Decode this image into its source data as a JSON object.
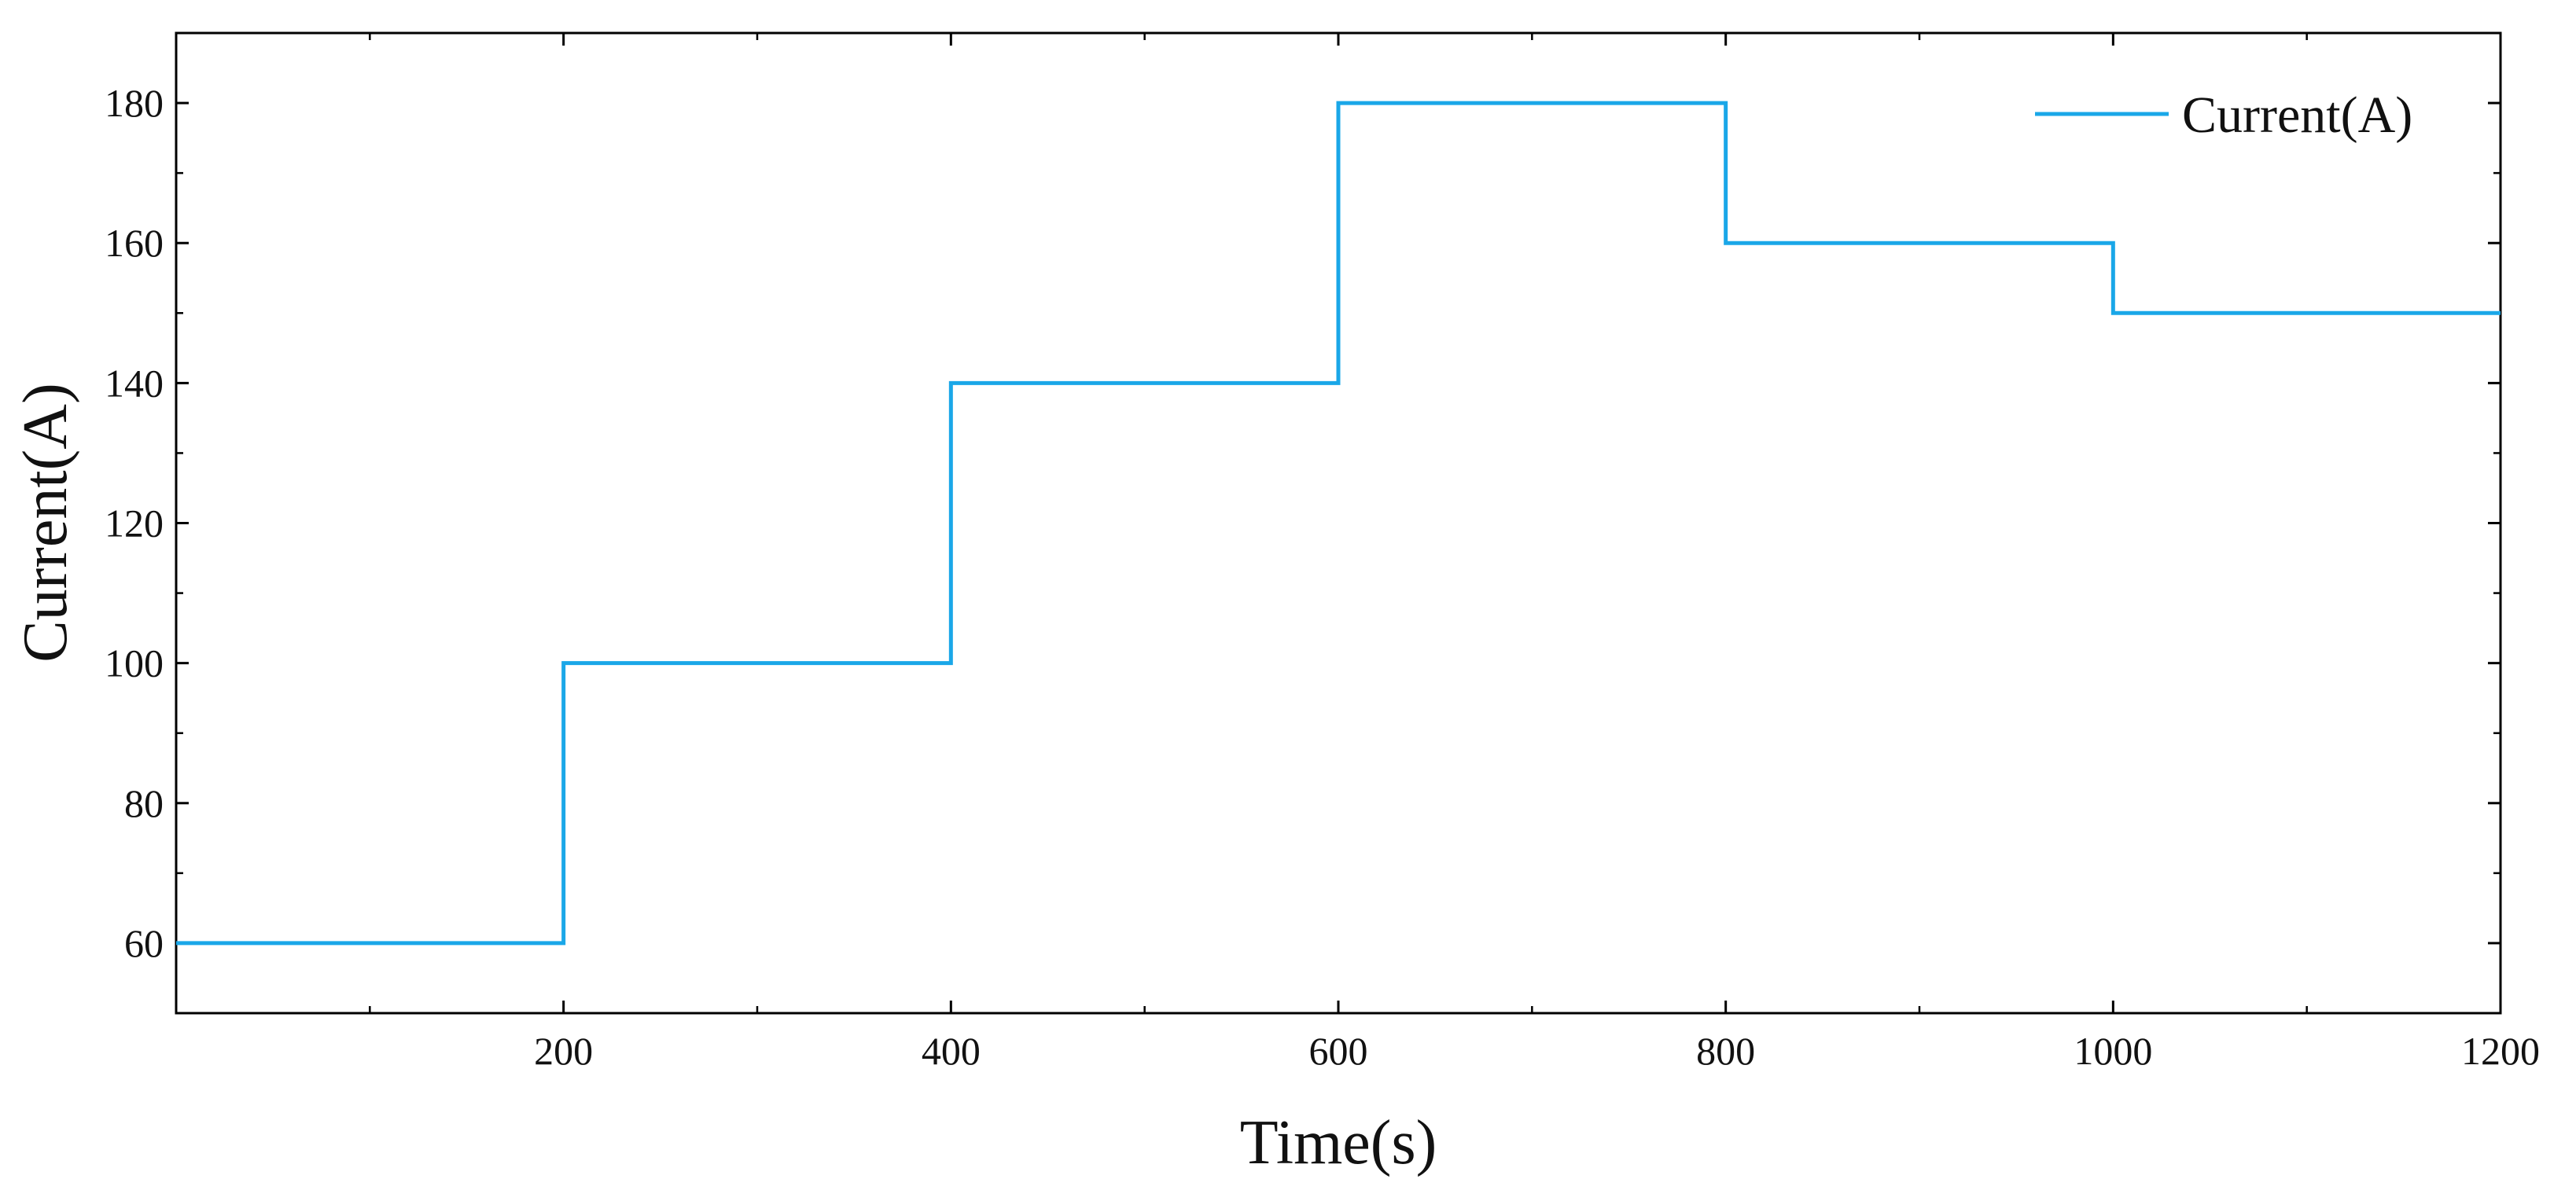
{
  "chart_data": {
    "type": "line",
    "xlabel": "Time(s)",
    "ylabel": "Current(A)",
    "xlim": [
      0,
      1200
    ],
    "ylim": [
      50,
      190
    ],
    "xticks": [
      200,
      400,
      600,
      800,
      1000,
      1200
    ],
    "yticks": [
      60,
      80,
      100,
      120,
      140,
      160,
      180
    ],
    "x_minor_step": 100,
    "y_minor_step": 10,
    "grid": false,
    "legend_position": "top-right",
    "series": [
      {
        "name": "Current(A)",
        "color": "#1aa7e8",
        "x": [
          0,
          200,
          200,
          400,
          400,
          600,
          600,
          800,
          800,
          1000,
          1000,
          1200
        ],
        "y": [
          60,
          60,
          100,
          100,
          140,
          140,
          180,
          180,
          160,
          160,
          150,
          150
        ]
      }
    ]
  }
}
